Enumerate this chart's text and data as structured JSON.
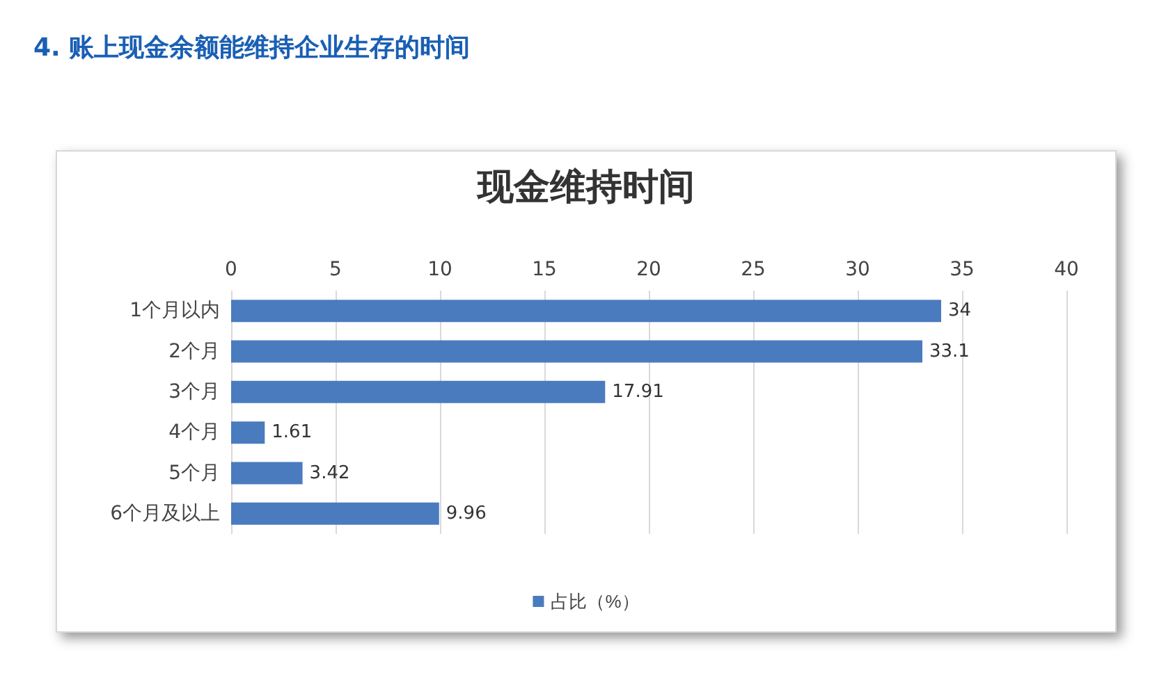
{
  "chart_data": {
    "type": "bar",
    "orientation": "horizontal",
    "title": "4. 账上现金余额能维持企业生存的时间",
    "subtitle": "现金维持时间",
    "categories": [
      "1个月以内",
      "2个月",
      "3个月",
      "4个月",
      "5个月",
      "6个月及以上"
    ],
    "series": [
      {
        "name": "占比（%）",
        "color": "#4a7bbf",
        "values": [
          34,
          33.1,
          17.91,
          1.61,
          3.42,
          9.96
        ]
      }
    ],
    "xlim": [
      0,
      40
    ],
    "xticks": [
      0,
      5,
      10,
      15,
      20,
      25,
      30,
      35,
      40
    ],
    "grid": "x",
    "legend": "bottom",
    "data_labels": true
  }
}
